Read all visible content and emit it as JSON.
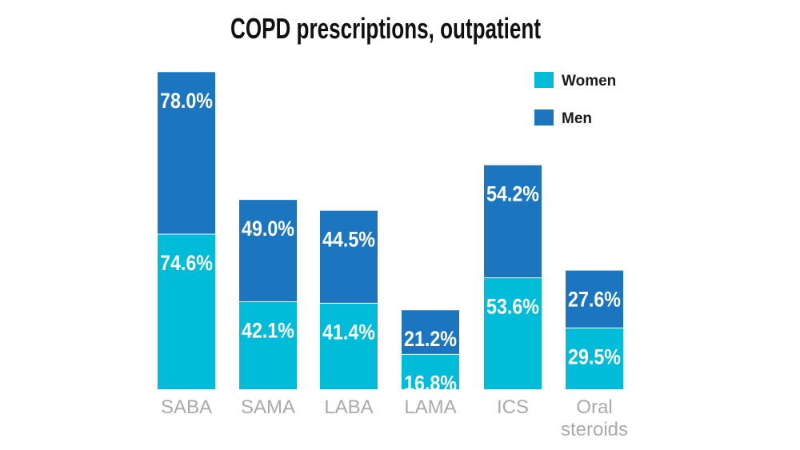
{
  "chart_data": {
    "type": "bar",
    "title": "COPD prescriptions, outpatient",
    "categories": [
      [
        "SABA"
      ],
      [
        "SAMA"
      ],
      [
        "LABA"
      ],
      [
        "LAMA"
      ],
      [
        "ICS"
      ],
      [
        "Oral",
        "steroids"
      ]
    ],
    "series": [
      {
        "name": "Women",
        "color": "#00bcd8",
        "values": [
          74.6,
          42.1,
          41.4,
          16.8,
          53.6,
          29.5
        ]
      },
      {
        "name": "Men",
        "color": "#1b75bf",
        "values": [
          78.0,
          49.0,
          44.5,
          21.2,
          54.2,
          27.6
        ]
      }
    ],
    "value_labels": {
      "Women": [
        "74.6%",
        "42.1%",
        "41.4%",
        "16.8%",
        "53.6%",
        "29.5%"
      ],
      "Men": [
        "78.0%",
        "49.0%",
        "44.5%",
        "21.2%",
        "54.2%",
        "27.6%"
      ]
    },
    "legend_position": "top-right",
    "grid": false,
    "axes_visible": false
  }
}
